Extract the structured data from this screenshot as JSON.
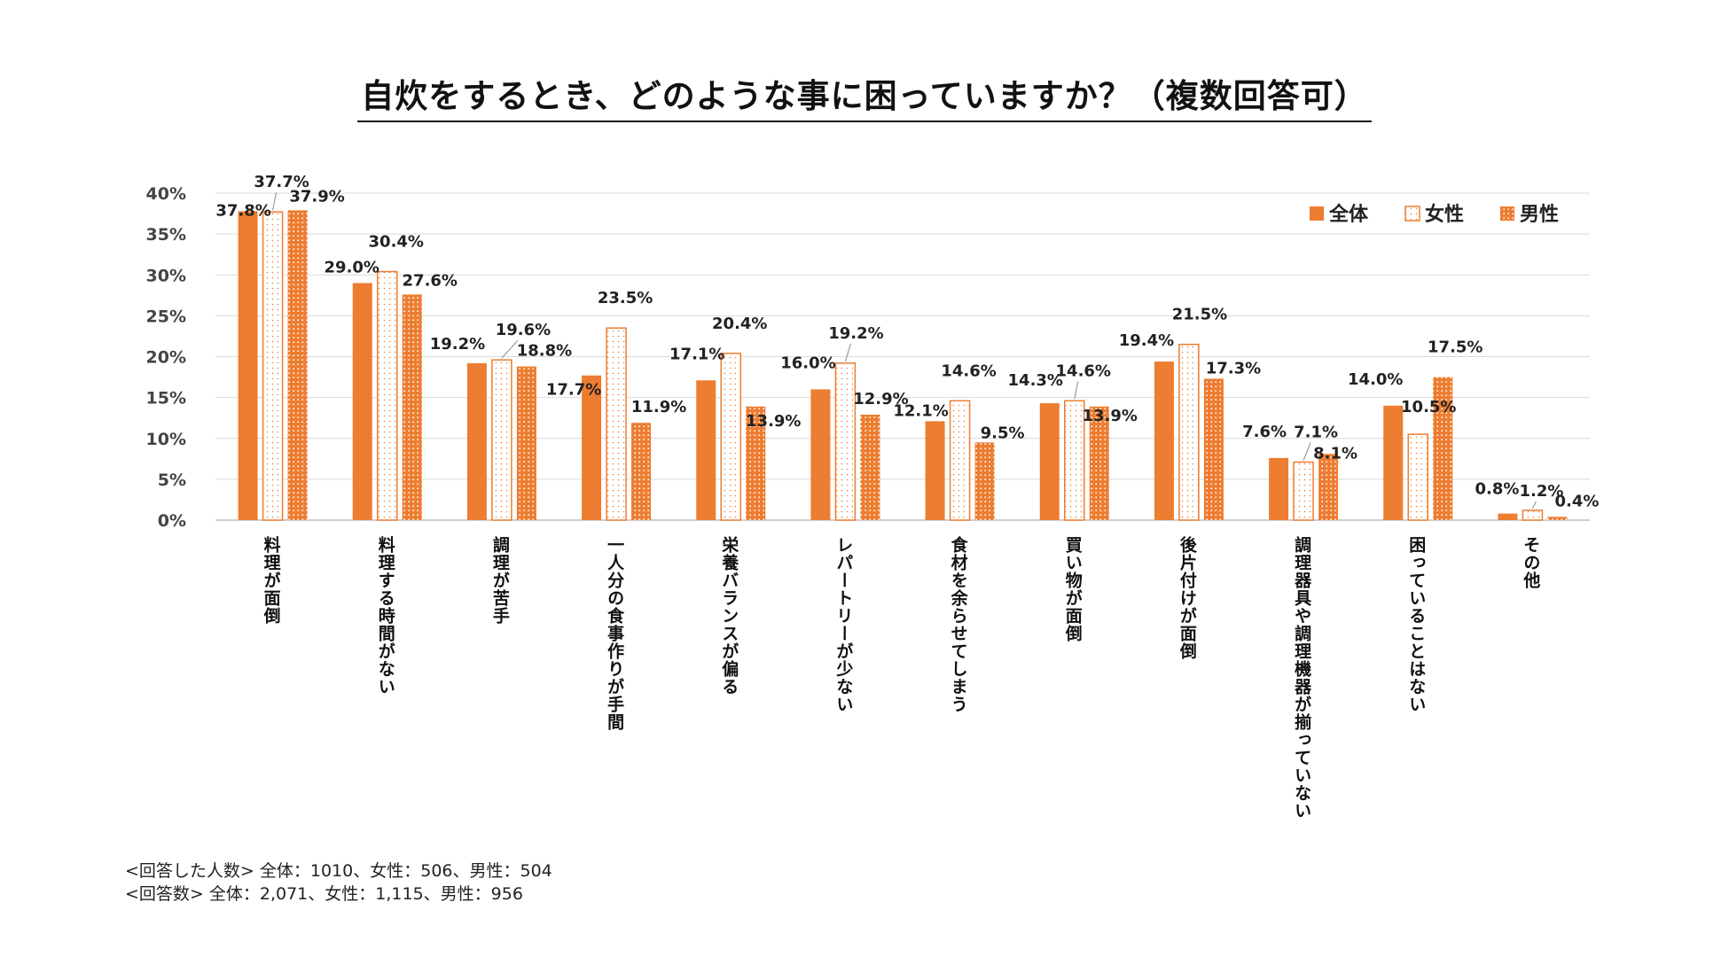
{
  "chart_data": {
    "type": "bar",
    "title": "自炊をするとき、どのような事に困っていますか？（複数回答可）",
    "categories": [
      "料理が面倒",
      "料理する時間がない",
      "調理が苦手",
      "一人分の食事作りが手間",
      "栄養バランスが偏る",
      "レパートリーが少ない",
      "食材を余らせてしまう",
      "買い物が面倒",
      "後片付けが面倒",
      "調理器具や調理機器が揃っていない",
      "困っていることはない",
      "その他"
    ],
    "series": [
      {
        "name": "全体",
        "values": [
          37.8,
          29.0,
          19.2,
          17.7,
          17.1,
          16.0,
          12.1,
          14.3,
          19.4,
          7.6,
          14.0,
          0.8
        ],
        "labels": [
          "37.8%",
          "29.0%",
          "19.2%",
          "17.7%",
          "17.1%",
          "16.0%",
          "12.1%",
          "14.3%",
          "19.4%",
          "7.6%",
          "14.0%",
          "0.8%"
        ]
      },
      {
        "name": "女性",
        "values": [
          37.7,
          30.4,
          19.6,
          23.5,
          20.4,
          19.2,
          14.6,
          14.6,
          21.5,
          7.1,
          10.5,
          1.2
        ],
        "labels": [
          "37.7%",
          "30.4%",
          "19.6%",
          "23.5%",
          "20.4%",
          "19.2%",
          "14.6%",
          "14.6%",
          "21.5%",
          "7.1%",
          "10.5%",
          "1.2%"
        ]
      },
      {
        "name": "男性",
        "values": [
          37.9,
          27.6,
          18.8,
          11.9,
          13.9,
          12.9,
          9.5,
          13.9,
          17.3,
          8.1,
          17.5,
          0.4
        ],
        "labels": [
          "37.9%",
          "27.6%",
          "18.8%",
          "11.9%",
          "13.9%",
          "12.9%",
          "9.5%",
          "13.9%",
          "17.3%",
          "8.1%",
          "17.5%",
          "0.4%"
        ]
      }
    ],
    "ylim": [
      0,
      40
    ],
    "yticks": [
      "0%",
      "5%",
      "10%",
      "15%",
      "20%",
      "25%",
      "30%",
      "35%",
      "40%"
    ],
    "legend_position": "top-right",
    "grid": true,
    "colors": {
      "accent": "#ED7D31",
      "female_fill": "#FFFFFF",
      "grid": "#D9D9D9",
      "axis": "#BFBFBF"
    }
  },
  "notes": [
    "<回答した人数> 全体：1010、女性：506、男性：504",
    "<回答数> 全体：2,071、女性：1,115、男性：956"
  ]
}
